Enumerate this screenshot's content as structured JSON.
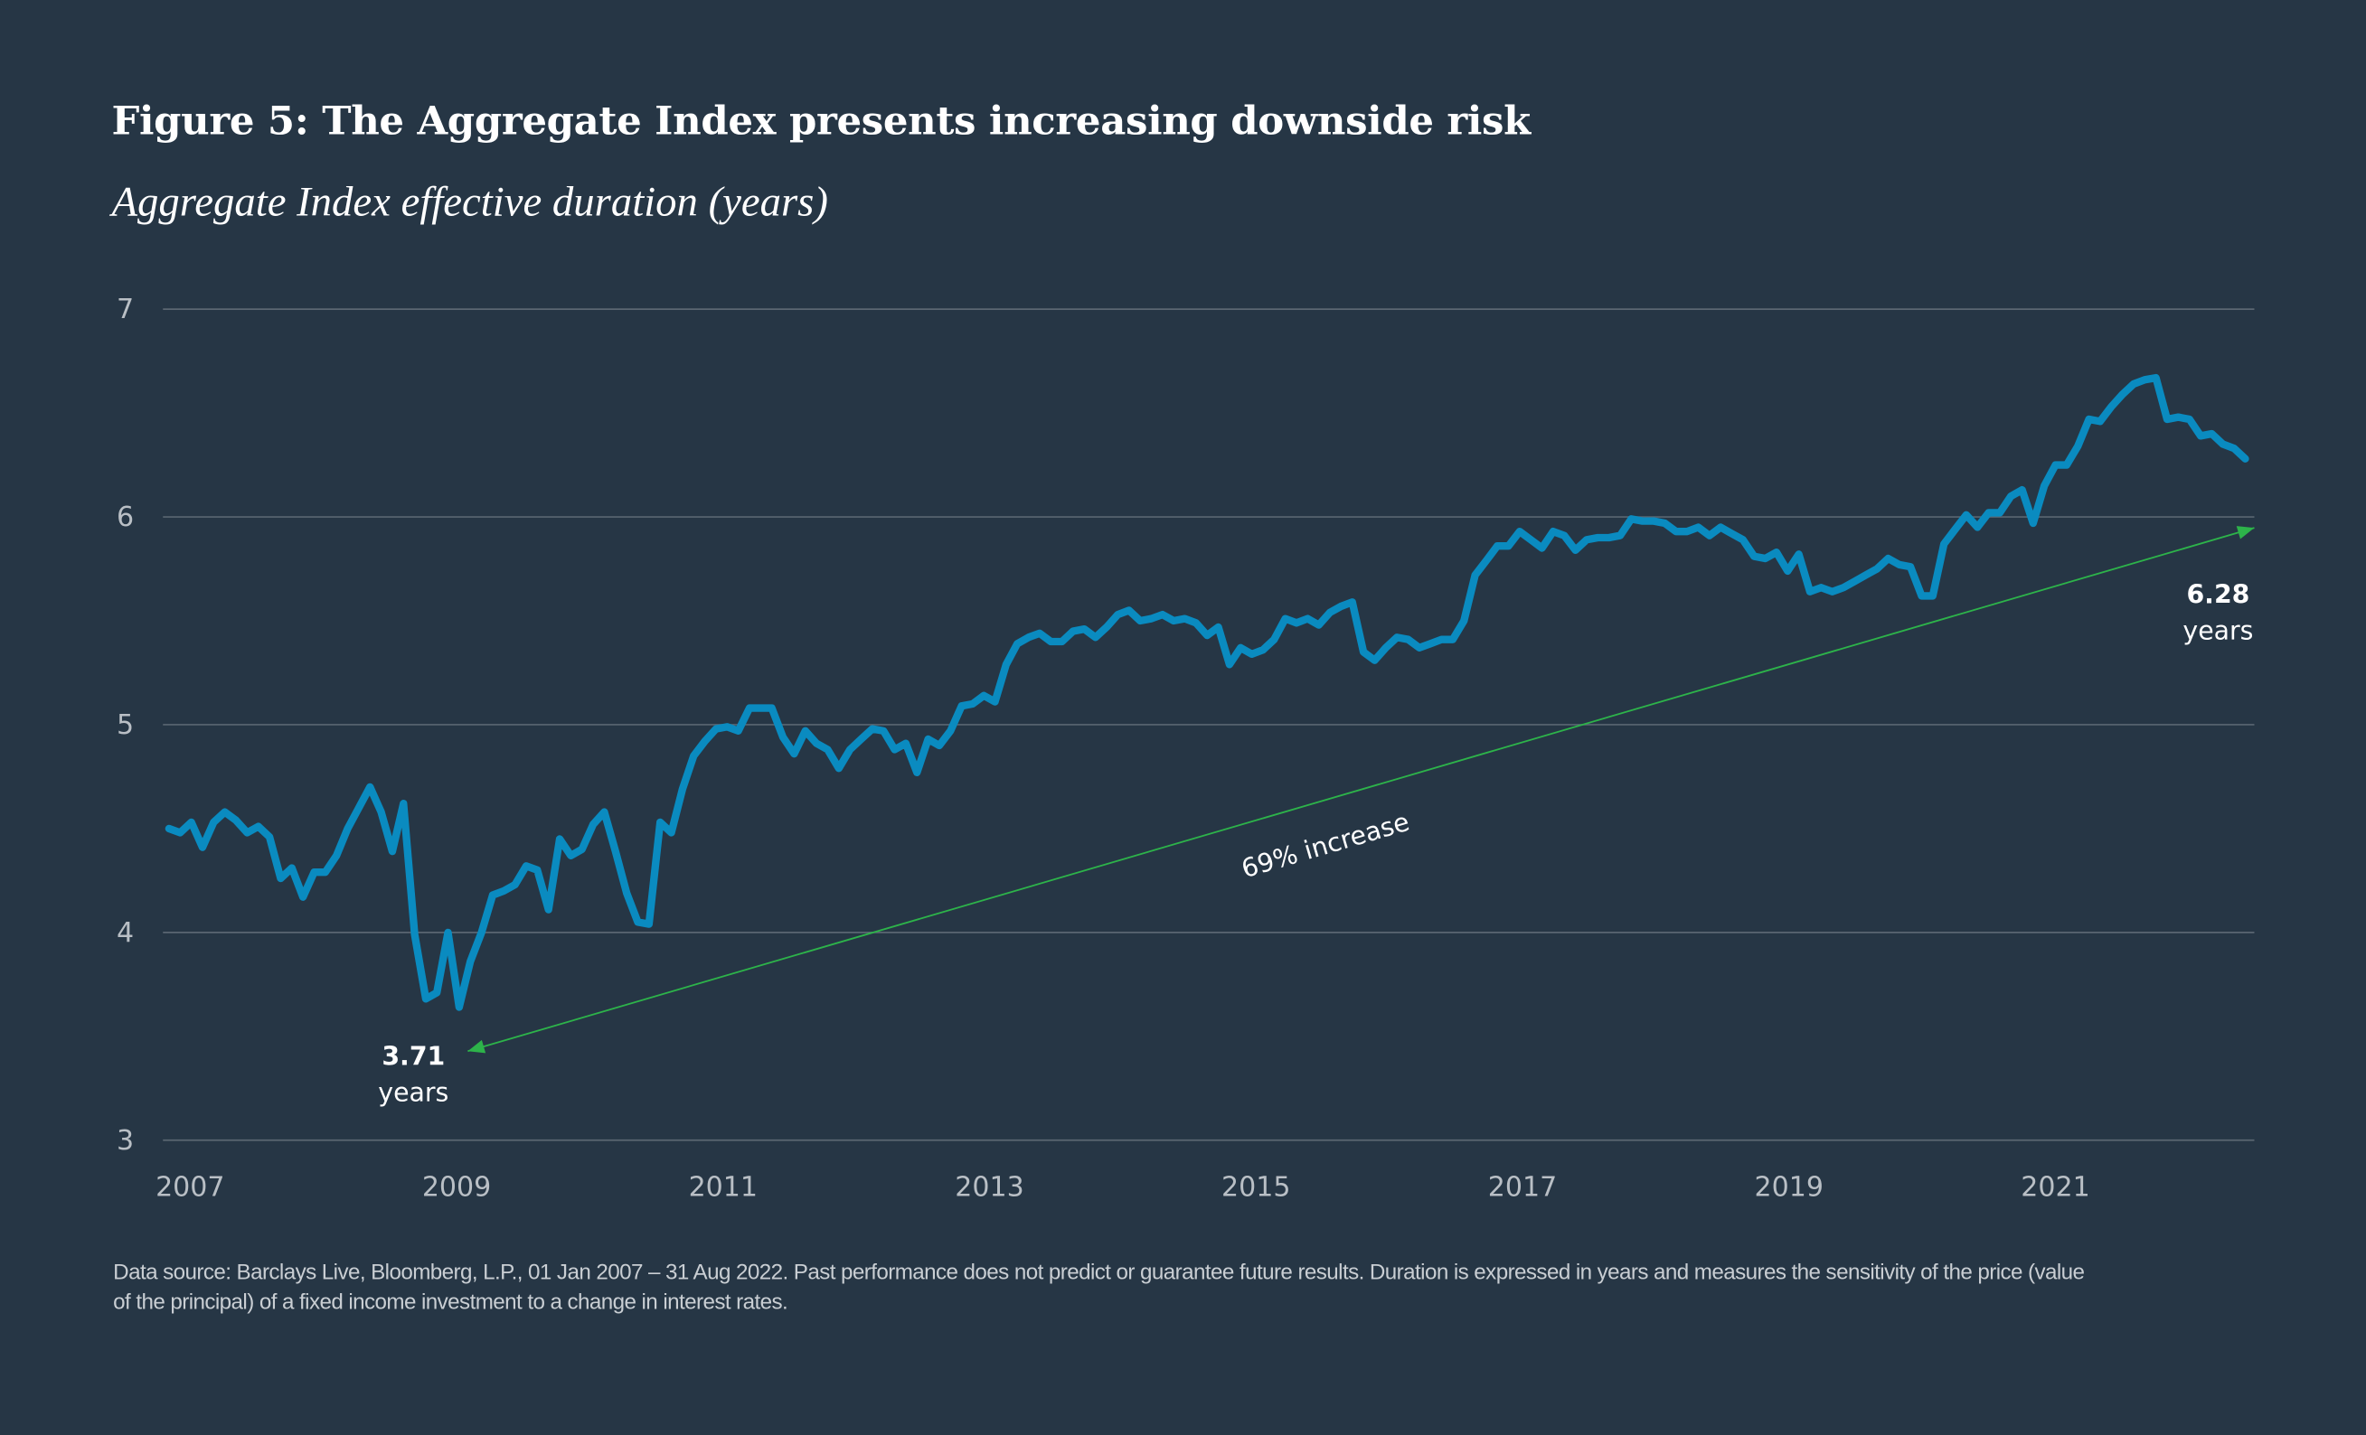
{
  "chart_data": {
    "type": "line",
    "title": "Figure 5: The Aggregate Index presents increasing downside risk",
    "subtitle": "Aggregate Index effective duration (years)",
    "xlabel": "",
    "ylabel": "",
    "x_range": [
      "2007-01",
      "2022-08"
    ],
    "x_frequency": "monthly",
    "x_ticks": [
      "2007",
      "2009",
      "2011",
      "2013",
      "2015",
      "2017",
      "2019",
      "2021"
    ],
    "y_ticks": [
      "3",
      "4",
      "5",
      "6",
      "7"
    ],
    "ylim": [
      3,
      7
    ],
    "grid": "horizontal",
    "line_color": "#0a8bc0",
    "annotation_color": "#2db34a",
    "series": [
      {
        "values": [
          4.5,
          4.48,
          4.53,
          4.41,
          4.53,
          4.58,
          4.54,
          4.48,
          4.51,
          4.46,
          4.26,
          4.31,
          4.17,
          4.29,
          4.29,
          4.37,
          4.5,
          4.6,
          4.7,
          4.58,
          4.39,
          4.62,
          3.99,
          3.68,
          3.71,
          4.0,
          3.64,
          3.86,
          4.0,
          4.18,
          4.2,
          4.23,
          4.32,
          4.3,
          4.11,
          4.45,
          4.37,
          4.4,
          4.52,
          4.58,
          4.39,
          4.19,
          4.05,
          4.04,
          4.53,
          4.48,
          4.69,
          4.85,
          4.92,
          4.98,
          4.99,
          4.97,
          5.08,
          5.08,
          5.08,
          4.94,
          4.86,
          4.97,
          4.91,
          4.88,
          4.79,
          4.88,
          4.93,
          4.98,
          4.97,
          4.88,
          4.91,
          4.77,
          4.93,
          4.9,
          4.97,
          5.09,
          5.1,
          5.14,
          5.11,
          5.29,
          5.39,
          5.42,
          5.44,
          5.4,
          5.4,
          5.45,
          5.46,
          5.42,
          5.47,
          5.53,
          5.55,
          5.5,
          5.51,
          5.53,
          5.5,
          5.51,
          5.49,
          5.43,
          5.47,
          5.29,
          5.37,
          5.34,
          5.36,
          5.41,
          5.51,
          5.49,
          5.51,
          5.48,
          5.54,
          5.57,
          5.59,
          5.35,
          5.31,
          5.37,
          5.42,
          5.41,
          5.37,
          5.39,
          5.41,
          5.41,
          5.5,
          5.72,
          5.79,
          5.86,
          5.86,
          5.93,
          5.89,
          5.85,
          5.93,
          5.91,
          5.84,
          5.89,
          5.9,
          5.9,
          5.91,
          5.99,
          5.98,
          5.98,
          5.97,
          5.93,
          5.93,
          5.95,
          5.91,
          5.95,
          5.92,
          5.89,
          5.81,
          5.8,
          5.83,
          5.74,
          5.82,
          5.64,
          5.66,
          5.64,
          5.66,
          5.69,
          5.72,
          5.75,
          5.8,
          5.77,
          5.76,
          5.62,
          5.62,
          5.87,
          5.94,
          6.01,
          5.95,
          6.02,
          6.02,
          6.1,
          6.13,
          5.97,
          6.15,
          6.25,
          6.25,
          6.34,
          6.47,
          6.46,
          6.53,
          6.59,
          6.64,
          6.66,
          6.67,
          6.47,
          6.48,
          6.47,
          6.39,
          6.4,
          6.35,
          6.33,
          6.28
        ]
      }
    ],
    "annotations": {
      "start_value": "3.71",
      "start_unit": "years",
      "end_value": "6.28",
      "end_unit": "years",
      "change_label": "69% increase"
    }
  },
  "footnote": "Data source: Barclays Live, Bloomberg, L.P., 01 Jan 2007 – 31 Aug 2022. Past performance does not predict or guarantee future results. Duration is expressed in years and measures the sensitivity of the price (value of the principal) of a fixed income investment to a change in interest rates."
}
